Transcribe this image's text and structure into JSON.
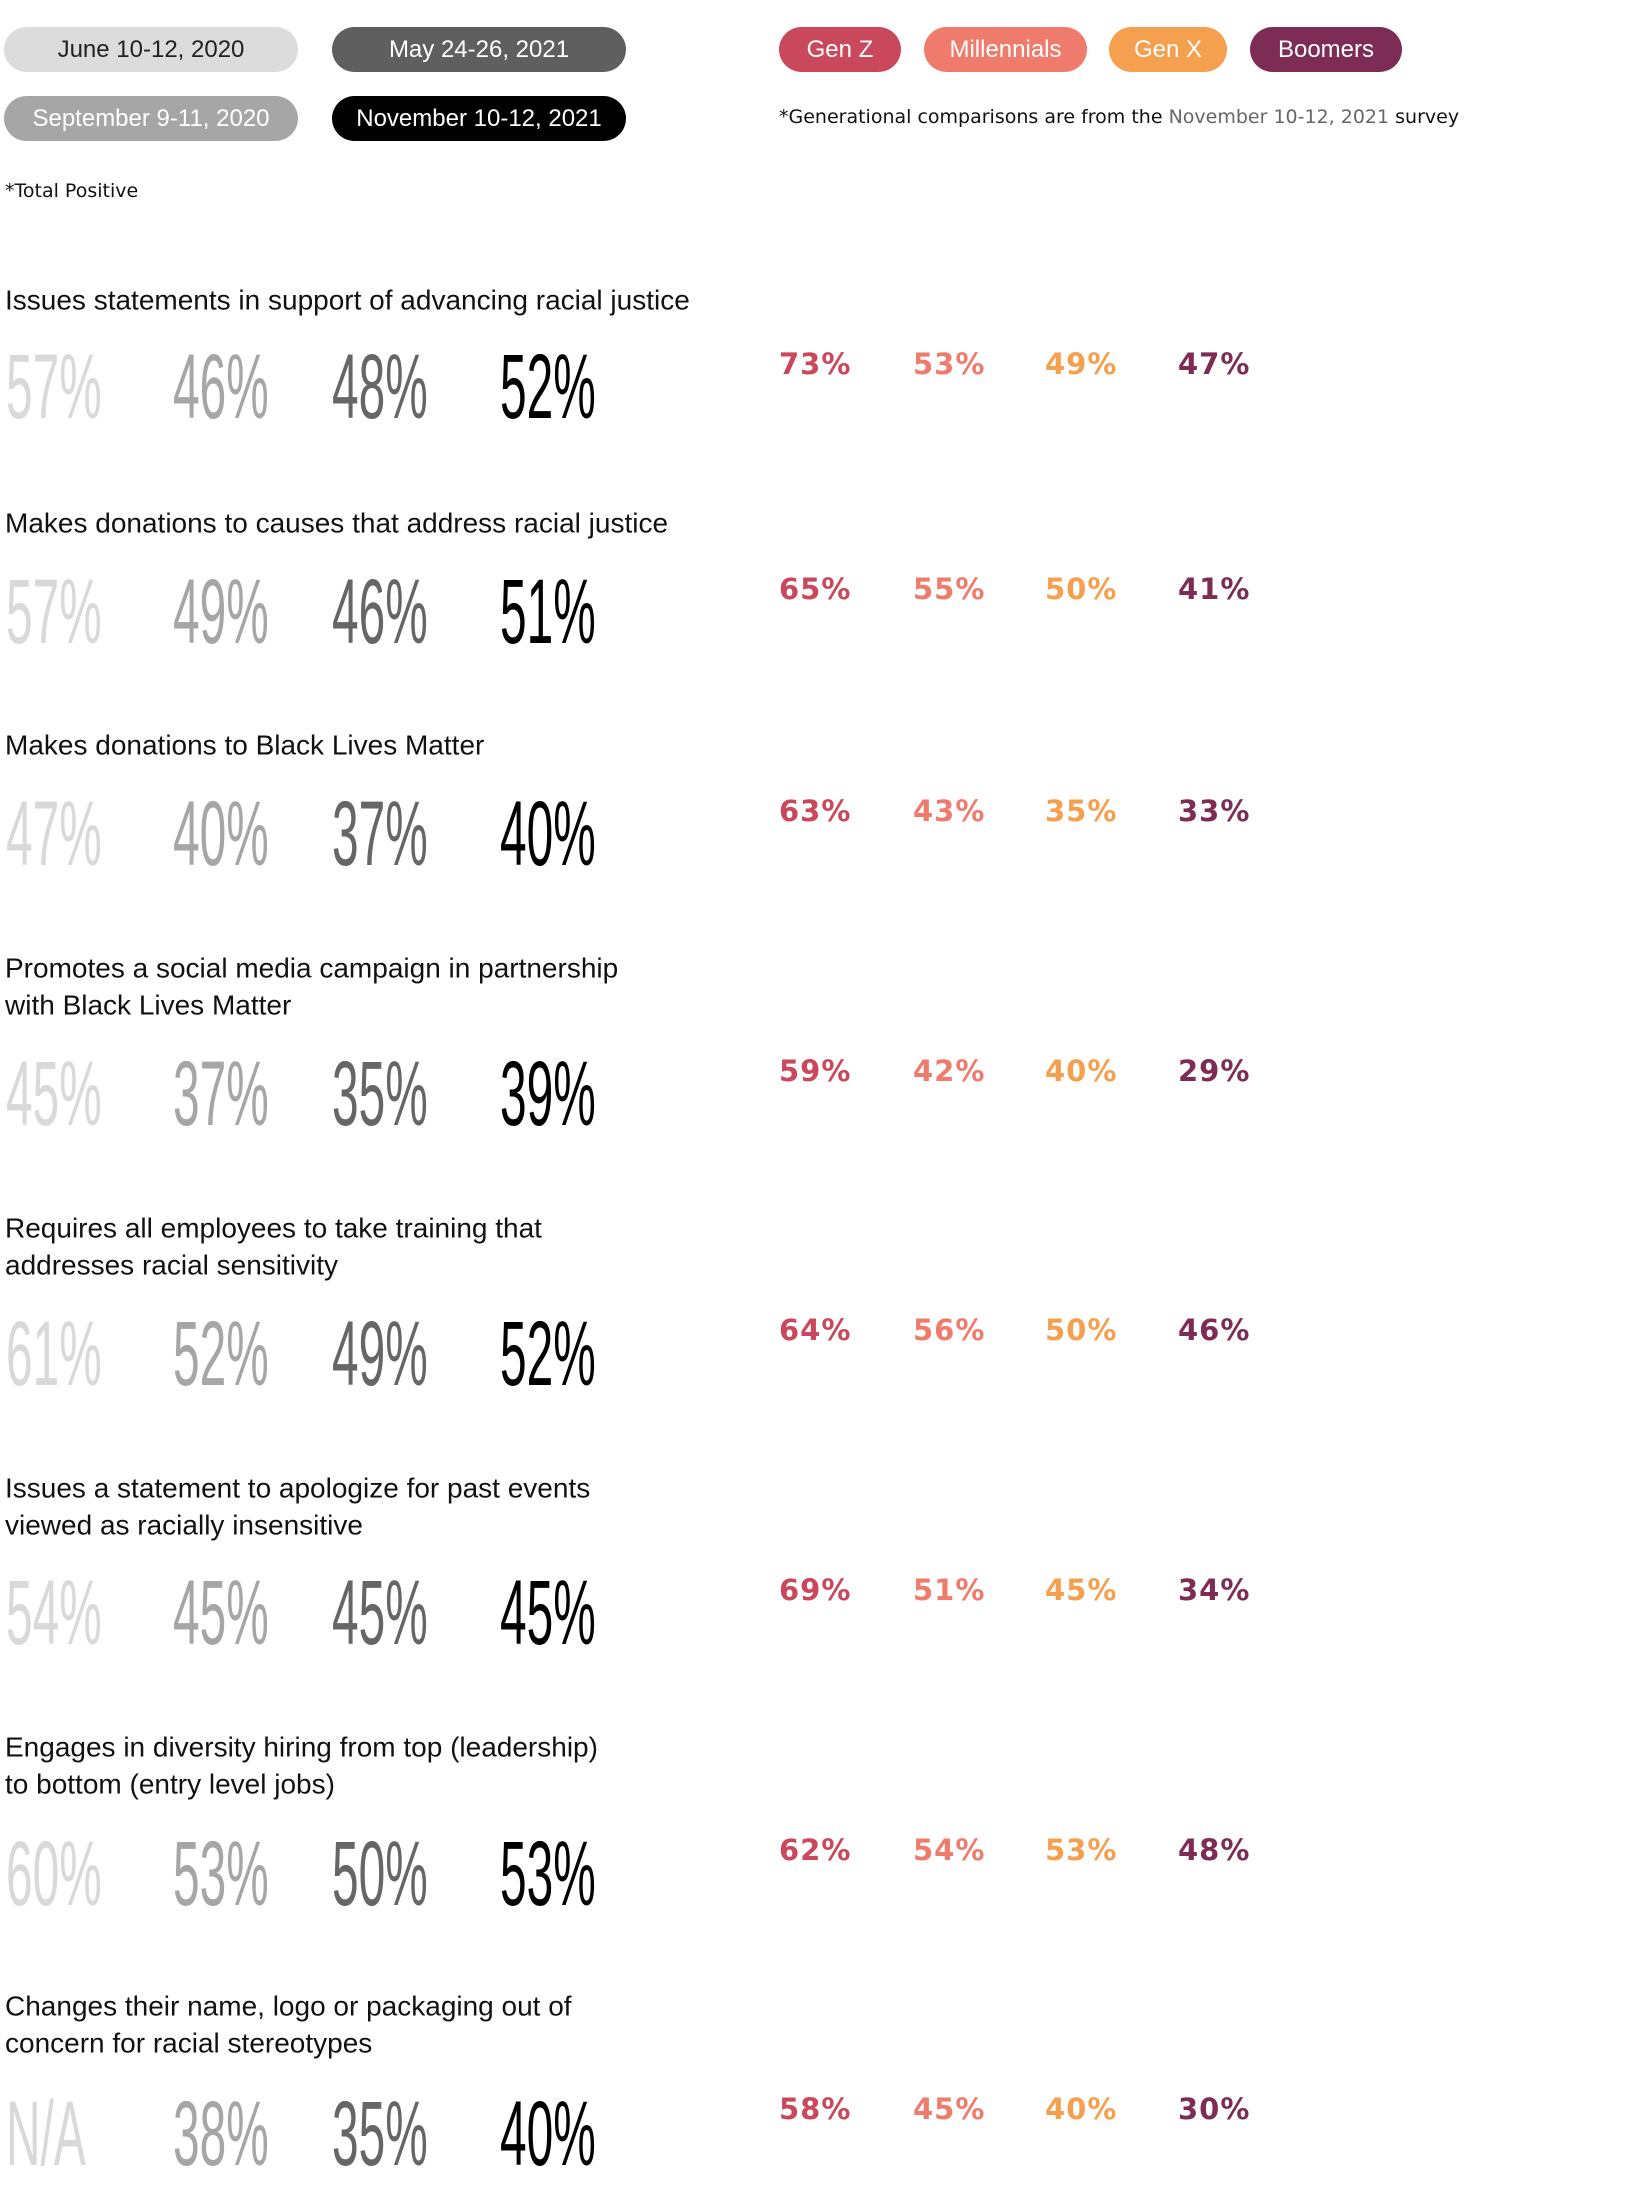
{
  "legend": {
    "surveys": [
      "June 10-12, 2020",
      "September 9-11, 2020",
      "May 24-26, 2021",
      "November 10-12, 2021"
    ],
    "generations": [
      "Gen Z",
      "Millennials",
      "Gen X",
      "Boomers"
    ]
  },
  "footnote": {
    "before": "*Generational comparisons are from the ",
    "highlight": "November 10-12, 2021",
    "after": " survey"
  },
  "note": "*Total Positive",
  "rows": [
    {
      "label": [
        "Issues statements in support of advancing racial justice"
      ],
      "surveys": [
        "57%",
        "46%",
        "48%",
        "52%"
      ],
      "generations": [
        "73%",
        "53%",
        "49%",
        "47%"
      ]
    },
    {
      "label": [
        "Makes donations to causes that address racial justice"
      ],
      "surveys": [
        "57%",
        "49%",
        "46%",
        "51%"
      ],
      "generations": [
        "65%",
        "55%",
        "50%",
        "41%"
      ]
    },
    {
      "label": [
        "Makes donations to Black Lives Matter"
      ],
      "surveys": [
        "47%",
        "40%",
        "37%",
        "40%"
      ],
      "generations": [
        "63%",
        "43%",
        "35%",
        "33%"
      ]
    },
    {
      "label": [
        "Promotes a social media campaign in partnership",
        "with Black Lives Matter"
      ],
      "surveys": [
        "45%",
        "37%",
        "35%",
        "39%"
      ],
      "generations": [
        "59%",
        "42%",
        "40%",
        "29%"
      ]
    },
    {
      "label": [
        "Requires all employees to take training that",
        "addresses racial sensitivity"
      ],
      "surveys": [
        "61%",
        "52%",
        "49%",
        "52%"
      ],
      "generations": [
        "64%",
        "56%",
        "50%",
        "46%"
      ]
    },
    {
      "label": [
        "Issues a statement to apologize for past events",
        "viewed as racially insensitive"
      ],
      "surveys": [
        "54%",
        "45%",
        "45%",
        "45%"
      ],
      "generations": [
        "69%",
        "51%",
        "45%",
        "34%"
      ]
    },
    {
      "label": [
        "Engages in diversity hiring from top (leadership)",
        "to bottom (entry level jobs)"
      ],
      "surveys": [
        "60%",
        "53%",
        "50%",
        "53%"
      ],
      "generations": [
        "62%",
        "54%",
        "53%",
        "48%"
      ]
    },
    {
      "label": [
        "Changes their name, logo or packaging out of",
        "concern for racial stereotypes"
      ],
      "surveys": [
        "N/A",
        "38%",
        "35%",
        "40%"
      ],
      "generations": [
        "58%",
        "45%",
        "40%",
        "30%"
      ]
    }
  ]
}
